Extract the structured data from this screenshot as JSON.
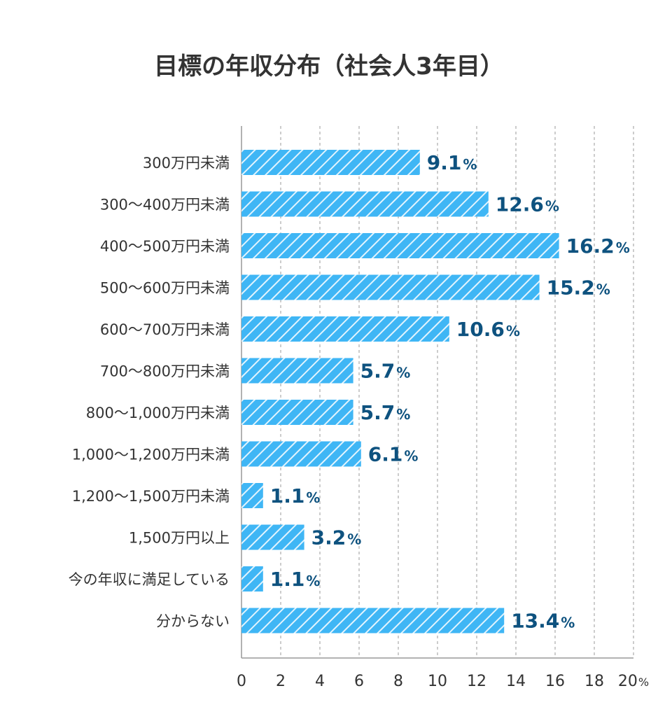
{
  "chart_data": {
    "type": "bar",
    "orientation": "horizontal",
    "title": "目標の年収分布（社会人3年目）",
    "categories": [
      "300万円未満",
      "300〜400万円未満",
      "400〜500万円未満",
      "500〜600万円未満",
      "600〜700万円未満",
      "700〜800万円未満",
      "800〜1,000万円未満",
      "1,000〜1,200万円未満",
      "1,200〜1,500万円未満",
      "1,500万円以上",
      "今の年収に満足している",
      "分からない"
    ],
    "values": [
      9.1,
      12.6,
      16.2,
      15.2,
      10.6,
      5.7,
      5.7,
      6.1,
      1.1,
      3.2,
      1.1,
      13.4
    ],
    "value_labels": [
      "9.1",
      "12.6",
      "16.2",
      "15.2",
      "10.6",
      "5.7",
      "5.7",
      "6.1",
      "1.1",
      "3.2",
      "1.1",
      "13.4"
    ],
    "value_suffix": "%",
    "xlim": [
      0,
      20
    ],
    "x_ticks": [
      "0",
      "2",
      "4",
      "6",
      "8",
      "10",
      "12",
      "14",
      "16",
      "18",
      "20"
    ],
    "x_tick_suffix": "%",
    "grid": "vertical-dashed",
    "colors": {
      "bar": "#3fb6f5",
      "stripe": "#ffffff",
      "value_text": "#0e527f",
      "grid": "#bbbbbb"
    }
  }
}
